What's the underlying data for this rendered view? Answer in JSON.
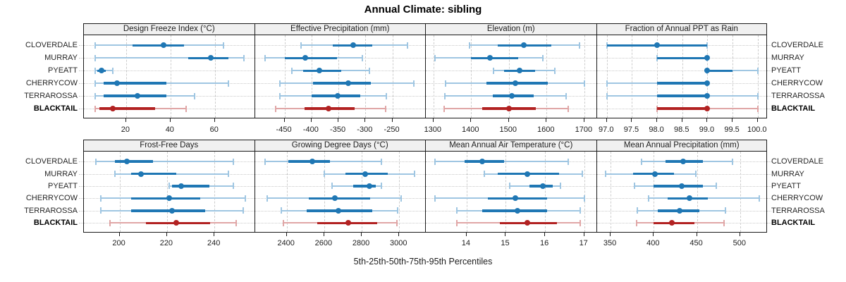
{
  "title": "Annual Climate: sibling",
  "xlabel": "5th-25th-50th-75th-95th Percentiles",
  "highlight_site": "BLACKTAIL",
  "colors": {
    "normal_line": "#9FC6E2",
    "normal_iqr": "#1F77B4",
    "highlight_line": "#E0A6A6",
    "highlight_iqr": "#B22222",
    "strip_bg": "#F0F0F0",
    "panel_border": "#1A1A1A",
    "gridline": "#CDCDCD",
    "text": "#1C1C1C"
  },
  "chart_data": {
    "type": "trellis-percentile-dotplot",
    "title": "Annual Climate: sibling",
    "xlabel": "5th-25th-50th-75th-95th Percentiles",
    "legend_note": "thin light line = 5th-95th percentile range with end caps, thick dark line = 25th-75th, dot = median",
    "percentiles": [
      5,
      25,
      50,
      75,
      95
    ],
    "sites": [
      "CLOVERDALE",
      "MURRAY",
      "PYEATT",
      "CHERRYCOW",
      "TERRAROSSA",
      "BLACKTAIL"
    ],
    "layout": {
      "rows": 2,
      "cols": 4
    },
    "panels": [
      {
        "title": "Design Freeze Index (°C)",
        "xlim": [
          1,
          78
        ],
        "ticks": [
          20,
          40,
          60
        ],
        "tick_labels": [
          "20",
          "40",
          "60"
        ],
        "values": [
          [
            6,
            23,
            37,
            46,
            64
          ],
          [
            6,
            48,
            58,
            66,
            73
          ],
          [
            6,
            7,
            9,
            11,
            14
          ],
          [
            6,
            10,
            16,
            38,
            66
          ],
          [
            6,
            10,
            25,
            38,
            51
          ],
          [
            6,
            8,
            14,
            33,
            47
          ]
        ]
      },
      {
        "title": "Effective Precipitation (mm)",
        "xlim": [
          -505,
          -188
        ],
        "ticks": [
          -450,
          -400,
          -350,
          -300,
          -250
        ],
        "tick_labels": [
          "-450",
          "-400",
          "-350",
          "-300",
          "-250"
        ],
        "values": [
          [
            -420,
            -360,
            -323,
            -287,
            -222
          ],
          [
            -486,
            -450,
            -411,
            -353,
            -305
          ],
          [
            -436,
            -415,
            -385,
            -345,
            -292
          ],
          [
            -459,
            -397,
            -332,
            -290,
            -210
          ],
          [
            -458,
            -400,
            -352,
            -310,
            -261
          ],
          [
            -467,
            -413,
            -368,
            -320,
            -262
          ]
        ]
      },
      {
        "title": "Elevation (m)",
        "xlim": [
          1280,
          1733
        ],
        "ticks": [
          1300,
          1400,
          1500,
          1600,
          1700
        ],
        "tick_labels": [
          "1300",
          "1400",
          "1500",
          "1600",
          "1700"
        ],
        "values": [
          [
            1395,
            1470,
            1540,
            1613,
            1688
          ],
          [
            1305,
            1400,
            1450,
            1525,
            1590
          ],
          [
            1460,
            1488,
            1528,
            1570,
            1622
          ],
          [
            1332,
            1440,
            1517,
            1604,
            1700
          ],
          [
            1330,
            1458,
            1508,
            1565,
            1652
          ],
          [
            1328,
            1430,
            1500,
            1572,
            1658
          ]
        ]
      },
      {
        "title": "Fraction of Annual PPT as Rain",
        "xlim": [
          96.8,
          100.2
        ],
        "ticks": [
          97.0,
          97.5,
          98.0,
          98.5,
          99.0,
          99.5,
          100.0
        ],
        "tick_labels": [
          "97.0",
          "97.5",
          "98.0",
          "98.5",
          "99.0",
          "99.5",
          "100.0"
        ],
        "values": [
          [
            97.0,
            97.0,
            98.0,
            99.0,
            99.0
          ],
          [
            98.0,
            98.0,
            99.0,
            99.0,
            99.0
          ],
          [
            99.0,
            99.0,
            99.0,
            99.5,
            100.0
          ],
          [
            97.0,
            98.0,
            99.0,
            99.0,
            99.0
          ],
          [
            97.0,
            98.0,
            99.0,
            99.0,
            100.0
          ],
          [
            98.0,
            98.0,
            99.0,
            99.0,
            100.0
          ]
        ]
      },
      {
        "title": "Frost-Free Days",
        "xlim": [
          185,
          257
        ],
        "ticks": [
          200,
          220,
          240
        ],
        "tick_labels": [
          "200",
          "220",
          "240"
        ],
        "values": [
          [
            190,
            198,
            203,
            214,
            248
          ],
          [
            198,
            205,
            209,
            224,
            246
          ],
          [
            221,
            222,
            226,
            238,
            248
          ],
          [
            192,
            205,
            221,
            234,
            253
          ],
          [
            192,
            205,
            222,
            236,
            252
          ],
          [
            196,
            211,
            224,
            238,
            249
          ]
        ]
      },
      {
        "title": "Growing Degree Days (°C)",
        "xlim": [
          2230,
          3142
        ],
        "ticks": [
          2400,
          2600,
          2800,
          3000
        ],
        "tick_labels": [
          "2400",
          "2600",
          "2800",
          "3000"
        ],
        "values": [
          [
            2285,
            2410,
            2535,
            2630,
            2905
          ],
          [
            2600,
            2712,
            2818,
            2938,
            3082
          ],
          [
            2640,
            2755,
            2840,
            2875,
            2905
          ],
          [
            2296,
            2519,
            2656,
            2844,
            3010
          ],
          [
            2372,
            2506,
            2675,
            2856,
            2991
          ],
          [
            2381,
            2562,
            2727,
            2881,
            2987
          ]
        ]
      },
      {
        "title": "Mean Annual Air Temperature (°C)",
        "xlim": [
          12.96,
          17.32
        ],
        "ticks": [
          14,
          15,
          16,
          17
        ],
        "tick_labels": [
          "14",
          "15",
          "16",
          "17"
        ],
        "values": [
          [
            13.2,
            13.95,
            14.4,
            14.95,
            16.6
          ],
          [
            14.45,
            14.8,
            15.55,
            16.35,
            16.95
          ],
          [
            15.1,
            15.6,
            15.95,
            16.2,
            16.4
          ],
          [
            13.2,
            14.55,
            15.25,
            16.05,
            17.0
          ],
          [
            13.75,
            14.4,
            15.3,
            16.05,
            16.9
          ],
          [
            13.75,
            14.85,
            15.55,
            16.3,
            16.9
          ]
        ]
      },
      {
        "title": "Mean Annual Precipitation (mm)",
        "xlim": [
          334,
          532
        ],
        "ticks": [
          350,
          400,
          450,
          500
        ],
        "tick_labels": [
          "350",
          "400",
          "450",
          "500"
        ],
        "values": [
          [
            386,
            414,
            434,
            457,
            491
          ],
          [
            344,
            376,
            401,
            423,
            449
          ],
          [
            378,
            400,
            432,
            457,
            472
          ],
          [
            394,
            416,
            441,
            463,
            522
          ],
          [
            381,
            405,
            430,
            453,
            483
          ],
          [
            380,
            400,
            421,
            447,
            481
          ]
        ]
      }
    ]
  }
}
